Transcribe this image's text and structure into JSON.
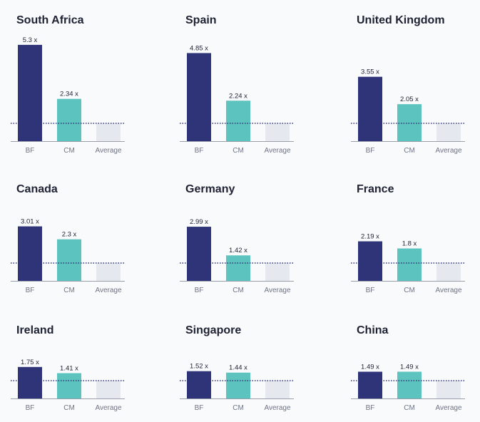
{
  "colors": {
    "background": "#f9fafc",
    "bf": "#2f3479",
    "cm": "#5dc3bf",
    "average": "#e6e8ef",
    "reference_line": "#2f3479",
    "baseline": "#9a9eaa"
  },
  "chart_data": [
    {
      "type": "bar",
      "title": "South Africa",
      "categories": [
        "BF",
        "CM",
        "Average"
      ],
      "values": [
        5.3,
        2.34,
        1
      ],
      "value_labels": [
        "5.3 x",
        "2.34 x",
        ""
      ],
      "reference_line": 1,
      "reference_line_style": "dotted"
    },
    {
      "type": "bar",
      "title": "Spain",
      "categories": [
        "BF",
        "CM",
        "Average"
      ],
      "values": [
        4.85,
        2.24,
        1
      ],
      "value_labels": [
        "4.85 x",
        "2.24 x",
        ""
      ],
      "reference_line": 1,
      "reference_line_style": "dotted"
    },
    {
      "type": "bar",
      "title": "United Kingdom",
      "categories": [
        "BF",
        "CM",
        "Average"
      ],
      "values": [
        3.55,
        2.05,
        1
      ],
      "value_labels": [
        "3.55 x",
        "2.05 x",
        ""
      ],
      "reference_line": 1,
      "reference_line_style": "dotted"
    },
    {
      "type": "bar",
      "title": "Canada",
      "categories": [
        "BF",
        "CM",
        "Average"
      ],
      "values": [
        3.01,
        2.3,
        1
      ],
      "value_labels": [
        "3.01 x",
        "2.3 x",
        ""
      ],
      "reference_line": 1,
      "reference_line_style": "dotted"
    },
    {
      "type": "bar",
      "title": "Germany",
      "categories": [
        "BF",
        "CM",
        "Average"
      ],
      "values": [
        2.99,
        1.42,
        1
      ],
      "value_labels": [
        "2.99 x",
        "1.42 x",
        ""
      ],
      "reference_line": 1,
      "reference_line_style": "dotted"
    },
    {
      "type": "bar",
      "title": "France",
      "categories": [
        "BF",
        "CM",
        "Average"
      ],
      "values": [
        2.19,
        1.8,
        1
      ],
      "value_labels": [
        "2.19 x",
        "1.8 x",
        ""
      ],
      "reference_line": 1,
      "reference_line_style": "dotted"
    },
    {
      "type": "bar",
      "title": "Ireland",
      "categories": [
        "BF",
        "CM",
        "Average"
      ],
      "values": [
        1.75,
        1.41,
        1
      ],
      "value_labels": [
        "1.75 x",
        "1.41 x",
        ""
      ],
      "reference_line": 1,
      "reference_line_style": "dotted"
    },
    {
      "type": "bar",
      "title": "Singapore",
      "categories": [
        "BF",
        "CM",
        "Average"
      ],
      "values": [
        1.52,
        1.44,
        1
      ],
      "value_labels": [
        "1.52 x",
        "1.44 x",
        ""
      ],
      "reference_line": 1,
      "reference_line_style": "dotted"
    },
    {
      "type": "bar",
      "title": "China",
      "categories": [
        "BF",
        "CM",
        "Average"
      ],
      "values": [
        1.49,
        1.49,
        1
      ],
      "value_labels": [
        "1.49 x",
        "1.49 x",
        ""
      ],
      "reference_line": 1,
      "reference_line_style": "dotted"
    }
  ]
}
